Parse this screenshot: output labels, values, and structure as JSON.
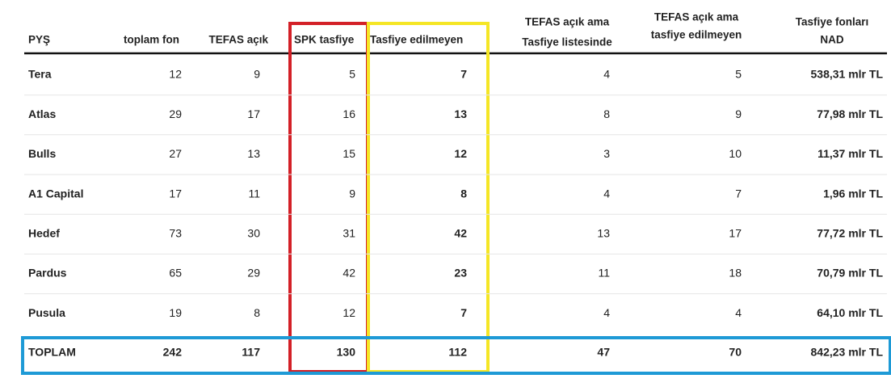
{
  "table": {
    "header": [
      [
        "PYŞ"
      ],
      [
        "toplam fon"
      ],
      [
        "TEFAS açık"
      ],
      [
        "SPK tasfiye"
      ],
      [
        "Tasfiye edilmeyen"
      ],
      [
        "TEFAS açık ama",
        "Tasfiye listesinde"
      ],
      [
        "TEFAS açık ama",
        "tasfiye  edilmeyen"
      ],
      [
        "Tasfiye fonları",
        "NAD"
      ]
    ],
    "rows": [
      [
        "Tera",
        12,
        9,
        5,
        7,
        4,
        5,
        "538,31 mlr TL"
      ],
      [
        "Atlas",
        29,
        17,
        16,
        13,
        8,
        9,
        "77,98 mlr TL"
      ],
      [
        "Bulls",
        27,
        13,
        15,
        12,
        3,
        10,
        "11,37 mlr TL"
      ],
      [
        "A1 Capital",
        17,
        11,
        9,
        8,
        4,
        7,
        "1,96 mlr TL"
      ],
      [
        "Hedef",
        73,
        30,
        31,
        42,
        13,
        17,
        "77,72 mlr TL"
      ],
      [
        "Pardus",
        65,
        29,
        42,
        23,
        11,
        18,
        "70,79 mlr TL"
      ],
      [
        "Pusula",
        19,
        8,
        12,
        7,
        4,
        4,
        "64,10 mlr TL"
      ]
    ],
    "total": [
      "TOPLAM",
      242,
      117,
      130,
      112,
      47,
      70,
      "842,23 mlr TL"
    ]
  }
}
